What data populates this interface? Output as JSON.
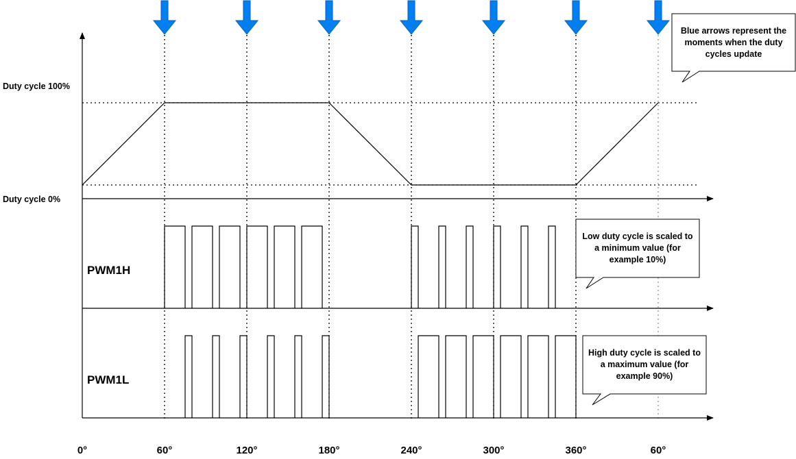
{
  "axis_labels": {
    "duty_100": "Duty cycle 100%",
    "duty_0": "Duty cycle 0%",
    "pwm_high": "PWM1H",
    "pwm_low": "PWM1L"
  },
  "angle_ticks": [
    "0°",
    "60°",
    "120°",
    "180°",
    "240°",
    "300°",
    "360°",
    "60°"
  ],
  "update_arrow_count": 7,
  "callouts": {
    "arrows_note": "Blue arrows represent the moments when the duty cycles update",
    "low_duty_note": "Low duty cycle is scaled to a minimum value (for example 10%)",
    "high_duty_note": "High duty cycle is scaled to a maximum value (for example 90%)"
  },
  "colors": {
    "arrow_fill": "#0080f0",
    "arrow_stroke": "#0060c0",
    "line": "#000000"
  },
  "chart_data": {
    "type": "line",
    "title": "",
    "xlabel": "",
    "ylabel": "",
    "x_unit": "electrical angle (degrees)",
    "duty_profile": {
      "x": [
        0,
        60,
        180,
        240,
        360,
        420
      ],
      "y": [
        0,
        100,
        100,
        0,
        0,
        100
      ]
    },
    "duty_update_points": [
      60,
      120,
      180,
      240,
      300,
      360,
      420
    ],
    "pwm_high_pulses": [
      {
        "start": 60,
        "end": 75
      },
      {
        "start": 80,
        "end": 95
      },
      {
        "start": 100,
        "end": 115
      },
      {
        "start": 120,
        "end": 135
      },
      {
        "start": 140,
        "end": 155
      },
      {
        "start": 160,
        "end": 175
      },
      {
        "start": 240,
        "end": 245
      },
      {
        "start": 260,
        "end": 265
      },
      {
        "start": 280,
        "end": 285
      },
      {
        "start": 300,
        "end": 305
      },
      {
        "start": 320,
        "end": 325
      },
      {
        "start": 340,
        "end": 345
      }
    ],
    "pwm_low_pulses": [
      {
        "start": 75,
        "end": 80
      },
      {
        "start": 95,
        "end": 100
      },
      {
        "start": 115,
        "end": 120
      },
      {
        "start": 135,
        "end": 140
      },
      {
        "start": 155,
        "end": 160
      },
      {
        "start": 175,
        "end": 180
      },
      {
        "start": 245,
        "end": 260
      },
      {
        "start": 265,
        "end": 280
      },
      {
        "start": 285,
        "end": 300
      },
      {
        "start": 305,
        "end": 320
      },
      {
        "start": 325,
        "end": 340
      },
      {
        "start": 345,
        "end": 360
      }
    ]
  }
}
